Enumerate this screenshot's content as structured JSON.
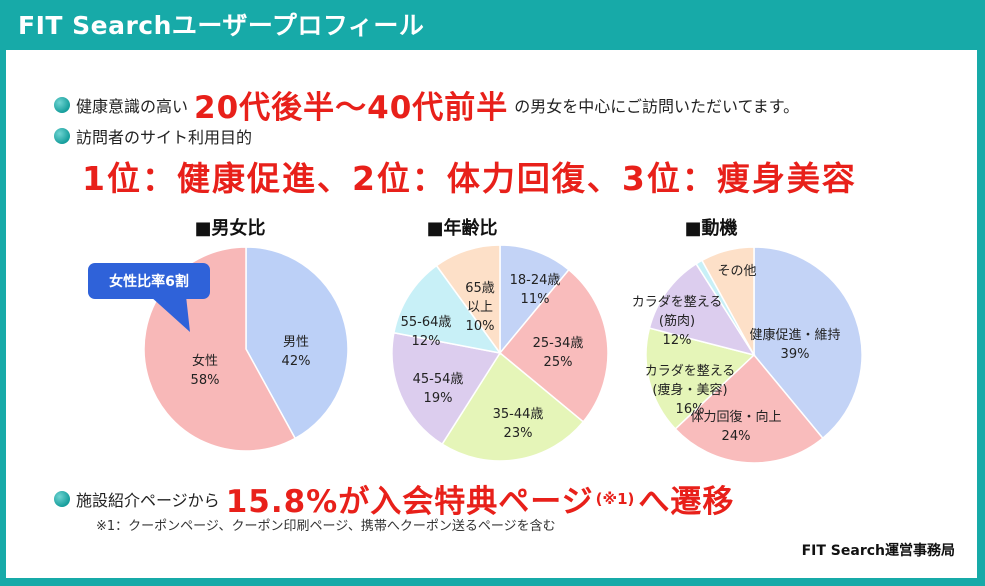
{
  "header": {
    "title": "FIT Searchユーザープロフィール"
  },
  "line1": {
    "pre": "健康意識の高い",
    "highlight": "20代後半〜40代前半",
    "post": "の男女を中心にご訪問いただいてます。"
  },
  "line2": {
    "text": "訪問者のサイト利用目的"
  },
  "ranking": "1位：健康促進、2位：体力回復、3位：痩身美容",
  "line3": {
    "pre": "施設紹介ページから",
    "highlight": "15.8%が入会特典ページ",
    "mark": "(※1)",
    "post": "へ遷移"
  },
  "note": "※1：クーポンページ、クーポン印刷ページ、携帯へクーポン送るページを含む",
  "credit": "FIT Search運営事務局",
  "callout": "女性比率6割",
  "chart_data": [
    {
      "type": "pie",
      "title": "■男女比",
      "slices": [
        {
          "label": "男性",
          "value": 42,
          "value_label": "42%",
          "color": "#bcd0f7"
        },
        {
          "label": "女性",
          "value": 58,
          "value_label": "58%",
          "color": "#f8b8b8"
        }
      ]
    },
    {
      "type": "pie",
      "title": "■年齢比",
      "slices": [
        {
          "label": "18-24歳",
          "value": 11,
          "value_label": "11%",
          "color": "#c3d3f6"
        },
        {
          "label": "25-34歳",
          "value": 25,
          "value_label": "25%",
          "color": "#f9bcbc"
        },
        {
          "label": "35-44歳",
          "value": 23,
          "value_label": "23%",
          "color": "#e5f5b8"
        },
        {
          "label": "45-54歳",
          "value": 19,
          "value_label": "19%",
          "color": "#dccdee"
        },
        {
          "label": "55-64歳",
          "value": 12,
          "value_label": "12%",
          "color": "#c8f0f7"
        },
        {
          "label": "65歳以上",
          "value": 10,
          "value_label": "10%",
          "color": "#fde0c8"
        }
      ]
    },
    {
      "type": "pie",
      "title": "■動機",
      "slices": [
        {
          "label": "健康促進・維持",
          "value": 39,
          "value_label": "39%",
          "color": "#c3d3f6"
        },
        {
          "label": "体力回復・向上",
          "value": 24,
          "value_label": "24%",
          "color": "#f9bcbc"
        },
        {
          "label": "カラダを整える（痩身・美容）",
          "value": 16,
          "value_label": "16%",
          "color": "#e5f5b8"
        },
        {
          "label": "カラダを整える（筋肉）",
          "value": 12,
          "value_label": "12%",
          "color": "#dccdee"
        },
        {
          "label": "",
          "value": 1,
          "value_label": "",
          "color": "#c8f0f7"
        },
        {
          "label": "その他",
          "value": 8,
          "value_label": "",
          "color": "#fde0c8"
        }
      ]
    }
  ]
}
